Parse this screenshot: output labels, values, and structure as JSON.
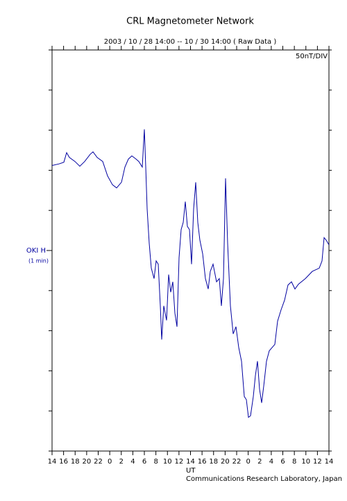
{
  "chart_data": {
    "type": "line",
    "title": "CRL Magnetometer Network",
    "subtitle": "2003 / 10 / 28   14:00 -- 10 / 30   14:00 ( Raw Data )",
    "scale_label": "50nT/DIV",
    "station_label": "OKI  H",
    "resolution_label": "(1 min)",
    "x_label": "UT",
    "credit": "Communications Research Laboratory, Japan",
    "xlim": [
      0,
      48
    ],
    "xticks": [
      {
        "value": 0,
        "label": "14"
      },
      {
        "value": 2,
        "label": "16"
      },
      {
        "value": 4,
        "label": "18"
      },
      {
        "value": 6,
        "label": "20"
      },
      {
        "value": 8,
        "label": "22"
      },
      {
        "value": 10,
        "label": "0"
      },
      {
        "value": 12,
        "label": "2"
      },
      {
        "value": 14,
        "label": "4"
      },
      {
        "value": 16,
        "label": "6"
      },
      {
        "value": 18,
        "label": "8"
      },
      {
        "value": 20,
        "label": "10"
      },
      {
        "value": 22,
        "label": "12"
      },
      {
        "value": 24,
        "label": "14"
      },
      {
        "value": 26,
        "label": "16"
      },
      {
        "value": 28,
        "label": "18"
      },
      {
        "value": 30,
        "label": "20"
      },
      {
        "value": 32,
        "label": "22"
      },
      {
        "value": 34,
        "label": "0"
      },
      {
        "value": 36,
        "label": "2"
      },
      {
        "value": 38,
        "label": "4"
      },
      {
        "value": 40,
        "label": "6"
      },
      {
        "value": 42,
        "label": "8"
      },
      {
        "value": 44,
        "label": "10"
      },
      {
        "value": 46,
        "label": "12"
      },
      {
        "value": 48,
        "label": "14"
      }
    ],
    "ylim": [
      -250,
      250
    ],
    "yticks": [
      -250,
      -200,
      -150,
      -100,
      -50,
      0,
      50,
      100,
      150,
      200,
      250
    ],
    "series": [
      {
        "name": "OKI  H",
        "color": "#0000a0",
        "x": [
          0,
          1.2,
          2.05,
          2.53,
          3.01,
          3.97,
          4.81,
          5.65,
          6.62,
          7.1,
          7.82,
          8.78,
          9.62,
          10.47,
          11.19,
          12.03,
          12.63,
          13.23,
          13.83,
          14.56,
          15.04,
          15.64,
          16.0,
          16.24,
          16.48,
          16.84,
          17.2,
          17.68,
          18.05,
          18.41,
          18.77,
          19.01,
          19.37,
          19.85,
          20.21,
          20.57,
          20.93,
          21.29,
          21.65,
          22.01,
          22.38,
          22.74,
          23.1,
          23.46,
          23.82,
          24.18,
          24.54,
          24.9,
          25.26,
          25.62,
          26.1,
          26.59,
          27.07,
          27.43,
          27.91,
          28.51,
          28.99,
          29.35,
          29.71,
          30.07,
          30.44,
          30.92,
          31.4,
          31.88,
          32.36,
          32.84,
          33.32,
          33.68,
          34.04,
          34.41,
          34.89,
          35.25,
          35.61,
          35.97,
          36.33,
          36.69,
          37.17,
          37.65,
          38.14,
          38.62,
          39.1,
          39.7,
          40.3,
          40.9,
          41.5,
          42.11,
          42.71,
          43.91,
          45.11,
          46.32,
          46.8,
          47.16,
          47.52,
          48
        ],
        "values": [
          106,
          108,
          110,
          122,
          116,
          111,
          105,
          111,
          120,
          123,
          116,
          111,
          93,
          82,
          78,
          85,
          104,
          114,
          118,
          114,
          111,
          104,
          151,
          104,
          52,
          9,
          -22,
          -35,
          -13,
          -17,
          -69,
          -111,
          -69,
          -87,
          -30,
          -52,
          -39,
          -78,
          -95,
          -9,
          26,
          35,
          61,
          30,
          26,
          -17,
          52,
          85,
          35,
          13,
          -4,
          -35,
          -48,
          -26,
          -17,
          -39,
          -35,
          -69,
          -35,
          90,
          9,
          -69,
          -104,
          -95,
          -121,
          -138,
          -182,
          -186,
          -208,
          -206,
          -182,
          -156,
          -138,
          -173,
          -190,
          -169,
          -138,
          -125,
          -121,
          -117,
          -88,
          -74,
          -62,
          -43,
          -39,
          -48,
          -42,
          -35,
          -26,
          -22,
          -13,
          16,
          13,
          7
        ]
      }
    ]
  }
}
